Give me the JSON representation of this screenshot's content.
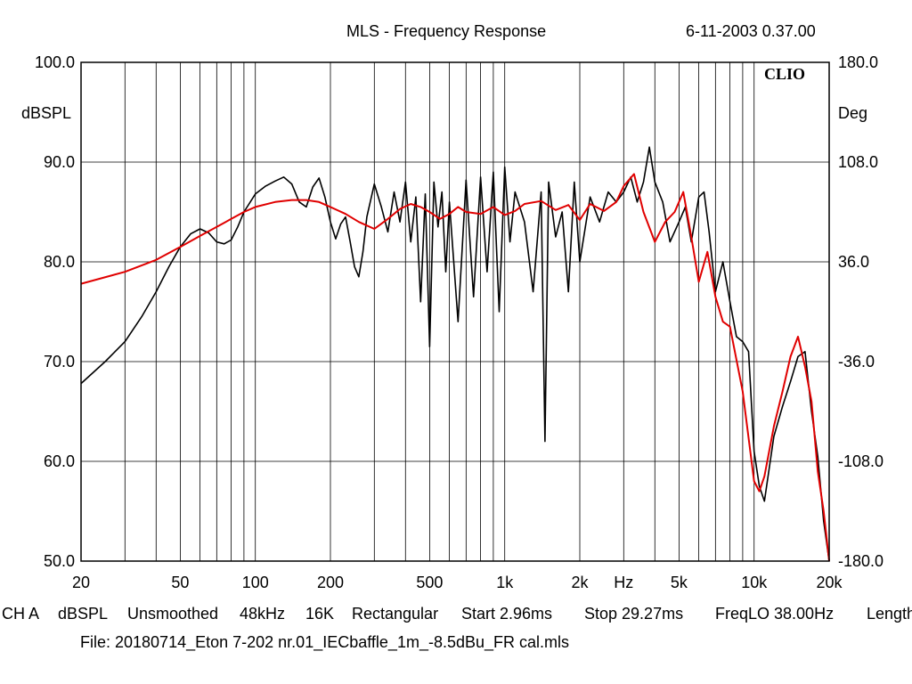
{
  "header": {
    "title": "MLS - Frequency Response",
    "datetime": "6-11-2003 0.37.00"
  },
  "brand": "CLIO",
  "status": {
    "items": [
      "CH A",
      "dBSPL",
      "Unsmoothed",
      "48kHz",
      "16K",
      "Rectangular",
      "Start 2.96ms",
      "Stop 29.27ms",
      "FreqLO 38.00Hz",
      "Length"
    ]
  },
  "file_label": "File: 20180714_Eton 7-202 nr.01_IECbaffle_1m_-8.5dBu_FR cal.mls",
  "colors": {
    "raw_trace": "#000000",
    "smoothed_trace": "#e00000",
    "grid": "#000000",
    "background": "#ffffff"
  },
  "chart_data": {
    "type": "line",
    "title": "MLS - Frequency Response",
    "xscale": "log",
    "xlim": [
      20,
      20000
    ],
    "x_ticks": [
      {
        "value": 20,
        "label": "20"
      },
      {
        "value": 50,
        "label": "50"
      },
      {
        "value": 100,
        "label": "100"
      },
      {
        "value": 200,
        "label": "200"
      },
      {
        "value": 500,
        "label": "500"
      },
      {
        "value": 1000,
        "label": "1k"
      },
      {
        "value": 2000,
        "label": "2k"
      },
      {
        "value": 3000,
        "label": "Hz"
      },
      {
        "value": 5000,
        "label": "5k"
      },
      {
        "value": 10000,
        "label": "10k"
      },
      {
        "value": 20000,
        "label": "20k"
      }
    ],
    "ylabel": "dBSPL",
    "ylim": [
      50,
      100
    ],
    "y_ticks": [
      "50.0",
      "60.0",
      "70.0",
      "80.0",
      "90.0",
      "100.0"
    ],
    "y2label": "Deg",
    "y2lim": [
      -180,
      180
    ],
    "y2_ticks": [
      "-180.0",
      "-108.0",
      "-36.0",
      "36.0",
      "108.0",
      "180.0"
    ],
    "grid": true,
    "series": [
      {
        "x": [
          20,
          25,
          30,
          35,
          40,
          45,
          50,
          55,
          60,
          65,
          70,
          75,
          80,
          85,
          90,
          100,
          110,
          120,
          130,
          140,
          150,
          160,
          170,
          180,
          190,
          200,
          210,
          220,
          230,
          240,
          250,
          260,
          270,
          280,
          300,
          320,
          340,
          360,
          380,
          400,
          420,
          440,
          460,
          480,
          500,
          520,
          540,
          560,
          580,
          600,
          650,
          700,
          750,
          800,
          850,
          900,
          950,
          1000,
          1050,
          1100,
          1200,
          1300,
          1400,
          1450,
          1500,
          1600,
          1700,
          1800,
          1900,
          2000,
          2200,
          2400,
          2600,
          2800,
          3000,
          3200,
          3400,
          3600,
          3800,
          4000,
          4300,
          4600,
          5000,
          5300,
          5600,
          6000,
          6300,
          6600,
          7000,
          7500,
          8000,
          8500,
          9000,
          9500,
          10000,
          10500,
          11000,
          12000,
          13000,
          14000,
          15000,
          16000,
          17000,
          18000,
          19000,
          20000
        ],
        "y": [
          67.8,
          70.0,
          72.0,
          74.5,
          77.0,
          79.5,
          81.5,
          82.8,
          83.3,
          82.9,
          82.0,
          81.8,
          82.2,
          83.5,
          85.0,
          86.8,
          87.6,
          88.1,
          88.5,
          87.8,
          86.0,
          85.5,
          87.5,
          88.4,
          86.5,
          84.0,
          82.3,
          83.8,
          84.5,
          82.0,
          79.5,
          78.5,
          81.0,
          84.5,
          87.8,
          85.5,
          83.0,
          87.0,
          84.0,
          88.0,
          82.0,
          86.5,
          76.0,
          86.8,
          71.5,
          88.0,
          83.5,
          87.0,
          79.0,
          86.0,
          74.0,
          88.2,
          76.5,
          88.5,
          79.0,
          89.0,
          75.0,
          89.5,
          82.0,
          87.0,
          84.0,
          77.0,
          87.0,
          62.0,
          88.0,
          82.5,
          85.0,
          77.0,
          88.0,
          80.0,
          86.5,
          84.0,
          87.0,
          86.0,
          87.0,
          88.5,
          86.0,
          88.0,
          91.5,
          88.0,
          86.0,
          82.0,
          84.0,
          85.5,
          82.0,
          86.5,
          87.0,
          83.0,
          77.0,
          80.0,
          76.0,
          72.5,
          72.0,
          71.0,
          61.0,
          57.5,
          56.0,
          62.5,
          65.5,
          68.0,
          70.5,
          71.0,
          65.0,
          60.5,
          54.0,
          50.0
        ]
      },
      {
        "x": [
          20,
          30,
          40,
          50,
          60,
          70,
          80,
          90,
          100,
          120,
          140,
          160,
          180,
          200,
          230,
          260,
          300,
          340,
          380,
          420,
          460,
          500,
          550,
          600,
          650,
          700,
          800,
          900,
          1000,
          1100,
          1200,
          1400,
          1600,
          1800,
          2000,
          2200,
          2500,
          2800,
          3000,
          3300,
          3600,
          4000,
          4400,
          4800,
          5200,
          5600,
          6000,
          6500,
          7000,
          7500,
          8000,
          9000,
          10000,
          10500,
          11000,
          12000,
          13000,
          14000,
          15000,
          16000,
          17000,
          18000,
          19000,
          20000
        ],
        "y": [
          77.8,
          79.0,
          80.2,
          81.5,
          82.6,
          83.5,
          84.3,
          85.0,
          85.5,
          86.0,
          86.2,
          86.2,
          86.0,
          85.5,
          84.8,
          84.0,
          83.3,
          84.3,
          85.3,
          85.8,
          85.5,
          85.0,
          84.3,
          84.8,
          85.5,
          85.0,
          84.8,
          85.5,
          84.7,
          85.1,
          85.8,
          86.1,
          85.2,
          85.7,
          84.2,
          85.8,
          85.1,
          86.0,
          87.6,
          88.8,
          85.0,
          82.0,
          84.0,
          85.0,
          87.0,
          82.5,
          78.0,
          81.0,
          76.5,
          74.0,
          73.5,
          67.0,
          58.0,
          57.0,
          58.5,
          63.5,
          67.0,
          70.5,
          72.5,
          69.5,
          66.0,
          59.0,
          55.0,
          50.0
        ]
      }
    ]
  }
}
